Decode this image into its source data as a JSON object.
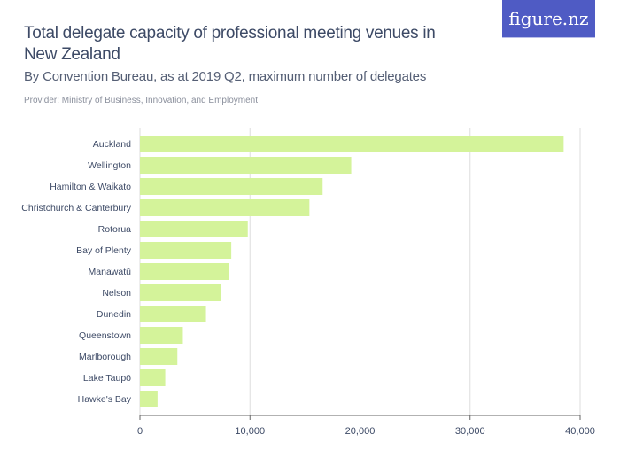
{
  "header": {
    "title": "Total delegate capacity of professional meeting venues in New Zealand",
    "subtitle": "By Convention Bureau, as at 2019 Q2, maximum number of delegates",
    "provider": "Provider: Ministry of Business, Innovation, and Employment",
    "logo": "figure.nz"
  },
  "colors": {
    "bar": "#d4f39a",
    "logo_bg": "#4f5bc4",
    "text": "#3d4a66",
    "grid": "#dddddd"
  },
  "chart_data": {
    "type": "bar",
    "orientation": "horizontal",
    "title": "Total delegate capacity of professional meeting venues in New Zealand",
    "subtitle": "By Convention Bureau, as at 2019 Q2, maximum number of delegates",
    "categories": [
      "Auckland",
      "Wellington",
      "Hamilton & Waikato",
      "Christchurch & Canterbury",
      "Rotorua",
      "Bay of Plenty",
      "Manawatū",
      "Nelson",
      "Dunedin",
      "Queenstown",
      "Marlborough",
      "Lake Taupō",
      "Hawke's Bay"
    ],
    "values": [
      38500,
      19200,
      16600,
      15400,
      9800,
      8300,
      8100,
      7400,
      6000,
      3900,
      3400,
      2300,
      1600
    ],
    "xlim": [
      0,
      40000
    ],
    "ticks": [
      0,
      10000,
      20000,
      30000,
      40000
    ],
    "tick_labels": [
      "0",
      "10,000",
      "20,000",
      "30,000",
      "40,000"
    ],
    "grid": true
  }
}
